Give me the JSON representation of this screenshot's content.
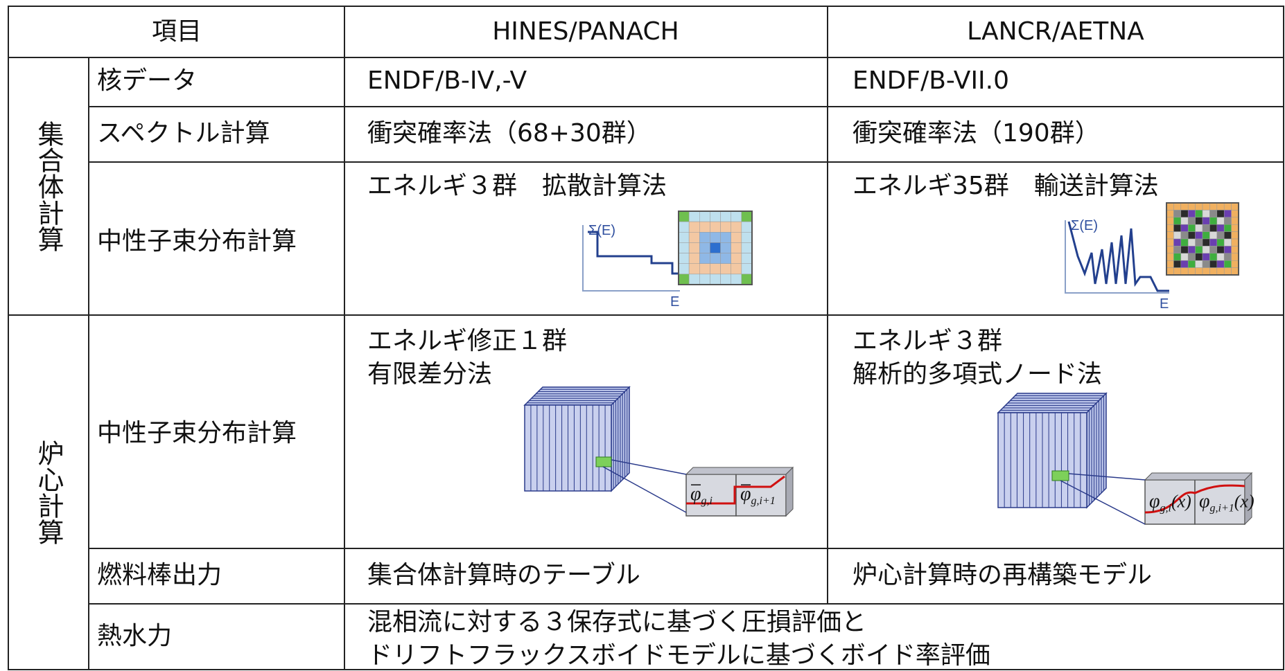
{
  "table": {
    "header": [
      "項目",
      "HINES/PANACH",
      "LANCR/AETNA"
    ],
    "groups": [
      {
        "label": "集合体計算",
        "rows": [
          {
            "item": "核データ",
            "hines": [
              "ENDF/B-IV,-V"
            ],
            "lancr": [
              "ENDF/B-VII.0"
            ]
          },
          {
            "item": "スペクトル計算",
            "hines": [
              "衝突確率法（68+30群）"
            ],
            "lancr": [
              "衝突確率法（190群）"
            ]
          },
          {
            "item": "中性子束分布計算",
            "hines": [
              "エネルギ３群　拡散計算法"
            ],
            "lancr": [
              "エネルギ35群　輸送計算法"
            ]
          }
        ]
      },
      {
        "label": "炉心計算",
        "rows": [
          {
            "item": "中性子束分布計算",
            "hines": [
              "エネルギ修正１群",
              "有限差分法"
            ],
            "lancr": [
              "エネルギ３群",
              "解析的多項式ノード法"
            ]
          },
          {
            "item": "燃料棒出力",
            "hines": [
              "集合体計算時のテーブル"
            ],
            "lancr": [
              "炉心計算時の再構築モデル"
            ]
          },
          {
            "item": "熱水力",
            "common": [
              "混相流に対する３保存式に基づく圧損評価と",
              "ドリフトフラックスボイドモデルに基づくボイド率評価"
            ]
          }
        ]
      }
    ],
    "diagram_labels": {
      "sigma": "Σ(E)",
      "energy": "E"
    },
    "hines_node_labels": [
      {
        "symbol": "φ",
        "sub": "g,i"
      },
      {
        "symbol": "φ",
        "sub": "g,i+1"
      }
    ],
    "lancr_node_labels": [
      {
        "symbol": "φ",
        "sub": "g,i",
        "arg": "(x)"
      },
      {
        "symbol": "φ",
        "sub": "g,i+1",
        "arg": "(x)"
      }
    ]
  }
}
